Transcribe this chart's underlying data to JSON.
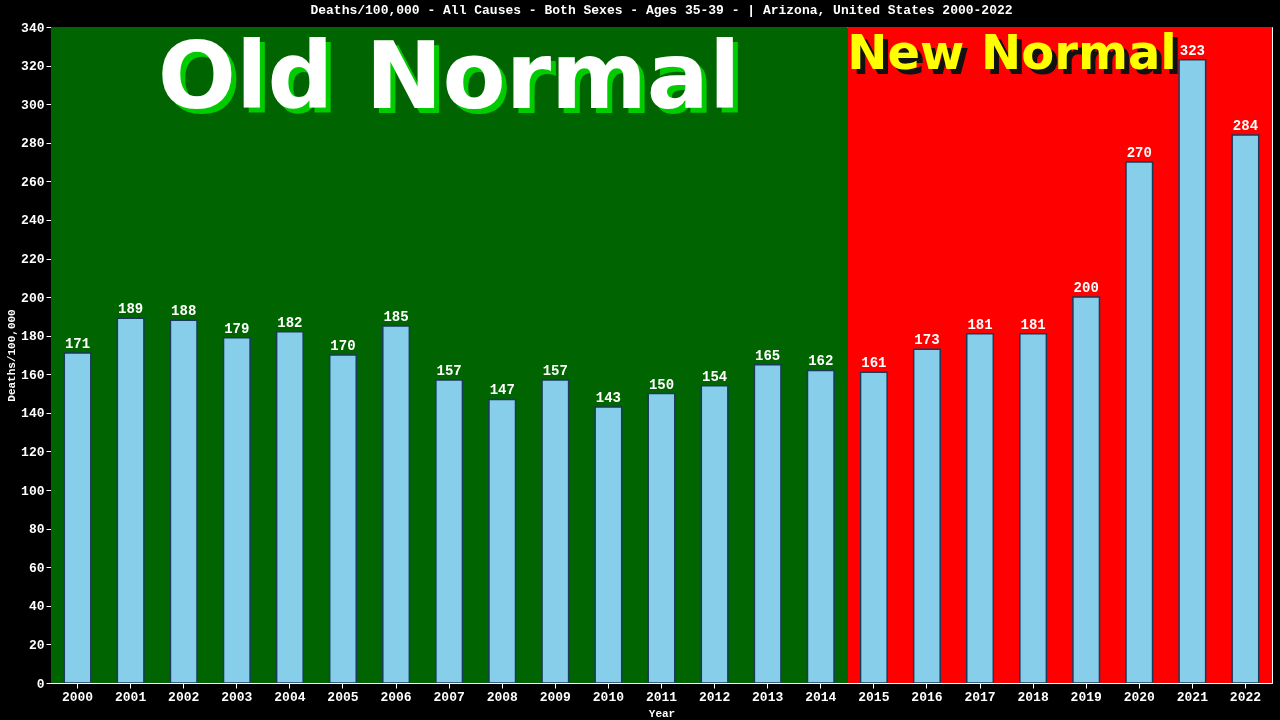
{
  "chart_data": {
    "type": "bar",
    "title": "Deaths/100,000 - All Causes - Both Sexes - Ages 35-39 -  | Arizona, United States 2000-2022",
    "xlabel": "Year",
    "ylabel": "Deaths/100,000",
    "categories": [
      "2000",
      "2001",
      "2002",
      "2003",
      "2004",
      "2005",
      "2006",
      "2007",
      "2008",
      "2009",
      "2010",
      "2011",
      "2012",
      "2013",
      "2014",
      "2015",
      "2016",
      "2017",
      "2018",
      "2019",
      "2020",
      "2021",
      "2022"
    ],
    "values": [
      171,
      189,
      188,
      179,
      182,
      170,
      185,
      157,
      147,
      157,
      143,
      150,
      154,
      165,
      162,
      161,
      173,
      181,
      181,
      200,
      270,
      323,
      284
    ],
    "color": "#87ceeb",
    "data_labels": true,
    "grid": false,
    "ylim": [
      0,
      340
    ],
    "yticks": [
      0,
      20,
      40,
      60,
      80,
      100,
      120,
      140,
      160,
      180,
      200,
      220,
      240,
      260,
      280,
      300,
      320,
      340
    ],
    "bands": [
      {
        "axis": "x",
        "from": "2000",
        "to": "2014",
        "label": "Old Normal",
        "color": "#006400"
      },
      {
        "axis": "x",
        "from": "2015",
        "to": "2022",
        "label": "New Normal",
        "color": "#ff0000"
      }
    ]
  }
}
